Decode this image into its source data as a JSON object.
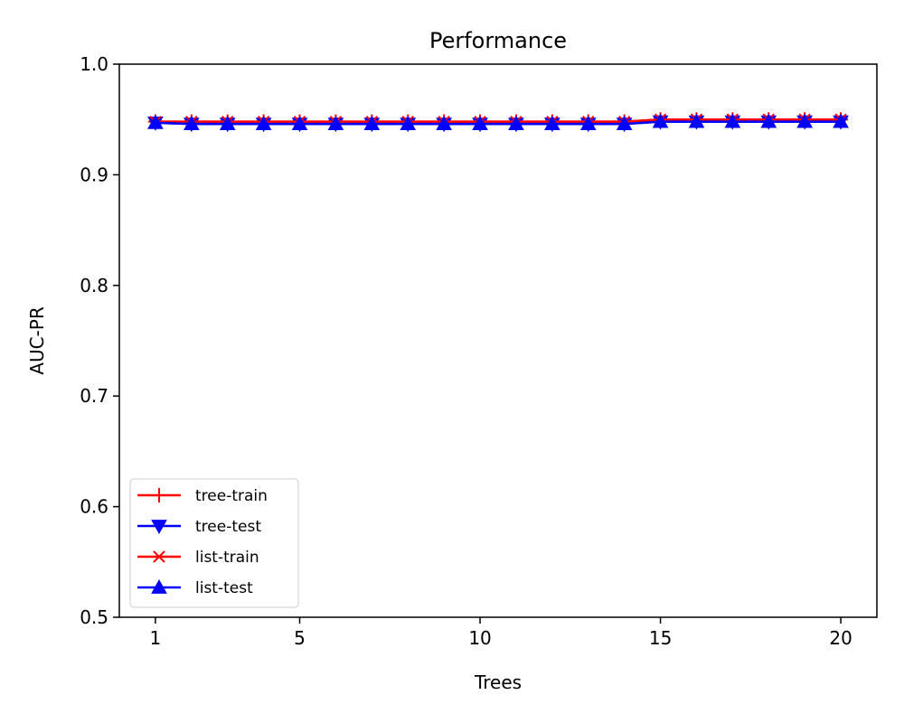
{
  "chart_data": {
    "type": "line",
    "title": "Performance",
    "xlabel": "Trees",
    "ylabel": "AUC-PR",
    "xlim": [
      0,
      21
    ],
    "ylim": [
      0.5,
      1.0
    ],
    "xticks": [
      1,
      5,
      10,
      15,
      20
    ],
    "yticks": [
      0.5,
      0.6,
      0.7,
      0.8,
      0.9,
      1.0
    ],
    "x": [
      1,
      2,
      3,
      4,
      5,
      6,
      7,
      8,
      9,
      10,
      11,
      12,
      13,
      14,
      15,
      16,
      17,
      18,
      19,
      20
    ],
    "series": [
      {
        "name": "tree-train",
        "color": "#ff0000",
        "marker": "plus",
        "values": [
          0.948,
          0.948,
          0.948,
          0.948,
          0.948,
          0.948,
          0.948,
          0.948,
          0.948,
          0.948,
          0.948,
          0.948,
          0.948,
          0.948,
          0.95,
          0.95,
          0.95,
          0.95,
          0.95,
          0.95
        ]
      },
      {
        "name": "tree-test",
        "color": "#0000ff",
        "marker": "triangle-down",
        "values": [
          0.947,
          0.946,
          0.946,
          0.946,
          0.946,
          0.946,
          0.946,
          0.946,
          0.946,
          0.946,
          0.946,
          0.946,
          0.946,
          0.946,
          0.948,
          0.948,
          0.948,
          0.948,
          0.948,
          0.948
        ]
      },
      {
        "name": "list-train",
        "color": "#ff0000",
        "marker": "x",
        "values": [
          0.948,
          0.948,
          0.948,
          0.948,
          0.948,
          0.948,
          0.948,
          0.948,
          0.948,
          0.948,
          0.948,
          0.948,
          0.948,
          0.948,
          0.95,
          0.95,
          0.95,
          0.95,
          0.95,
          0.95
        ]
      },
      {
        "name": "list-test",
        "color": "#0000ff",
        "marker": "triangle-up",
        "values": [
          0.947,
          0.946,
          0.946,
          0.946,
          0.946,
          0.946,
          0.946,
          0.946,
          0.946,
          0.946,
          0.946,
          0.946,
          0.946,
          0.946,
          0.948,
          0.948,
          0.948,
          0.948,
          0.948,
          0.948
        ]
      }
    ],
    "legend": "lower-left",
    "grid": false
  }
}
